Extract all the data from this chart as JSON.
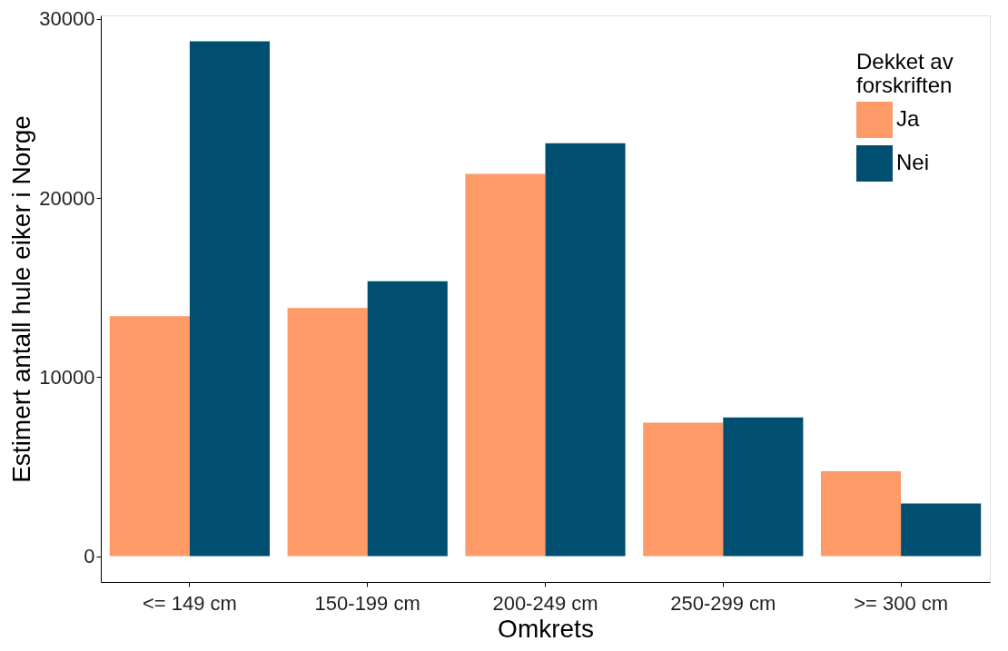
{
  "chart_data": {
    "type": "bar",
    "xlabel": "Omkrets",
    "ylabel": "Estimert antall hule eiker i Norge",
    "legend_title": "Dekket av forskriften",
    "categories": [
      "<= 149 cm",
      "150-199 cm",
      "200-249 cm",
      "250-299 cm",
      ">= 300 cm"
    ],
    "series": [
      {
        "name": "Ja",
        "color": "#fd9a67",
        "values": [
          13400,
          13850,
          21350,
          7450,
          4750
        ]
      },
      {
        "name": "Nei",
        "color": "#004f71",
        "values": [
          28750,
          15350,
          23050,
          7750,
          2950
        ]
      }
    ],
    "ylim": [
      -1440,
      30190
    ],
    "yticks": [
      0,
      10000,
      20000,
      30000
    ],
    "grid": false,
    "legend": "top right"
  }
}
